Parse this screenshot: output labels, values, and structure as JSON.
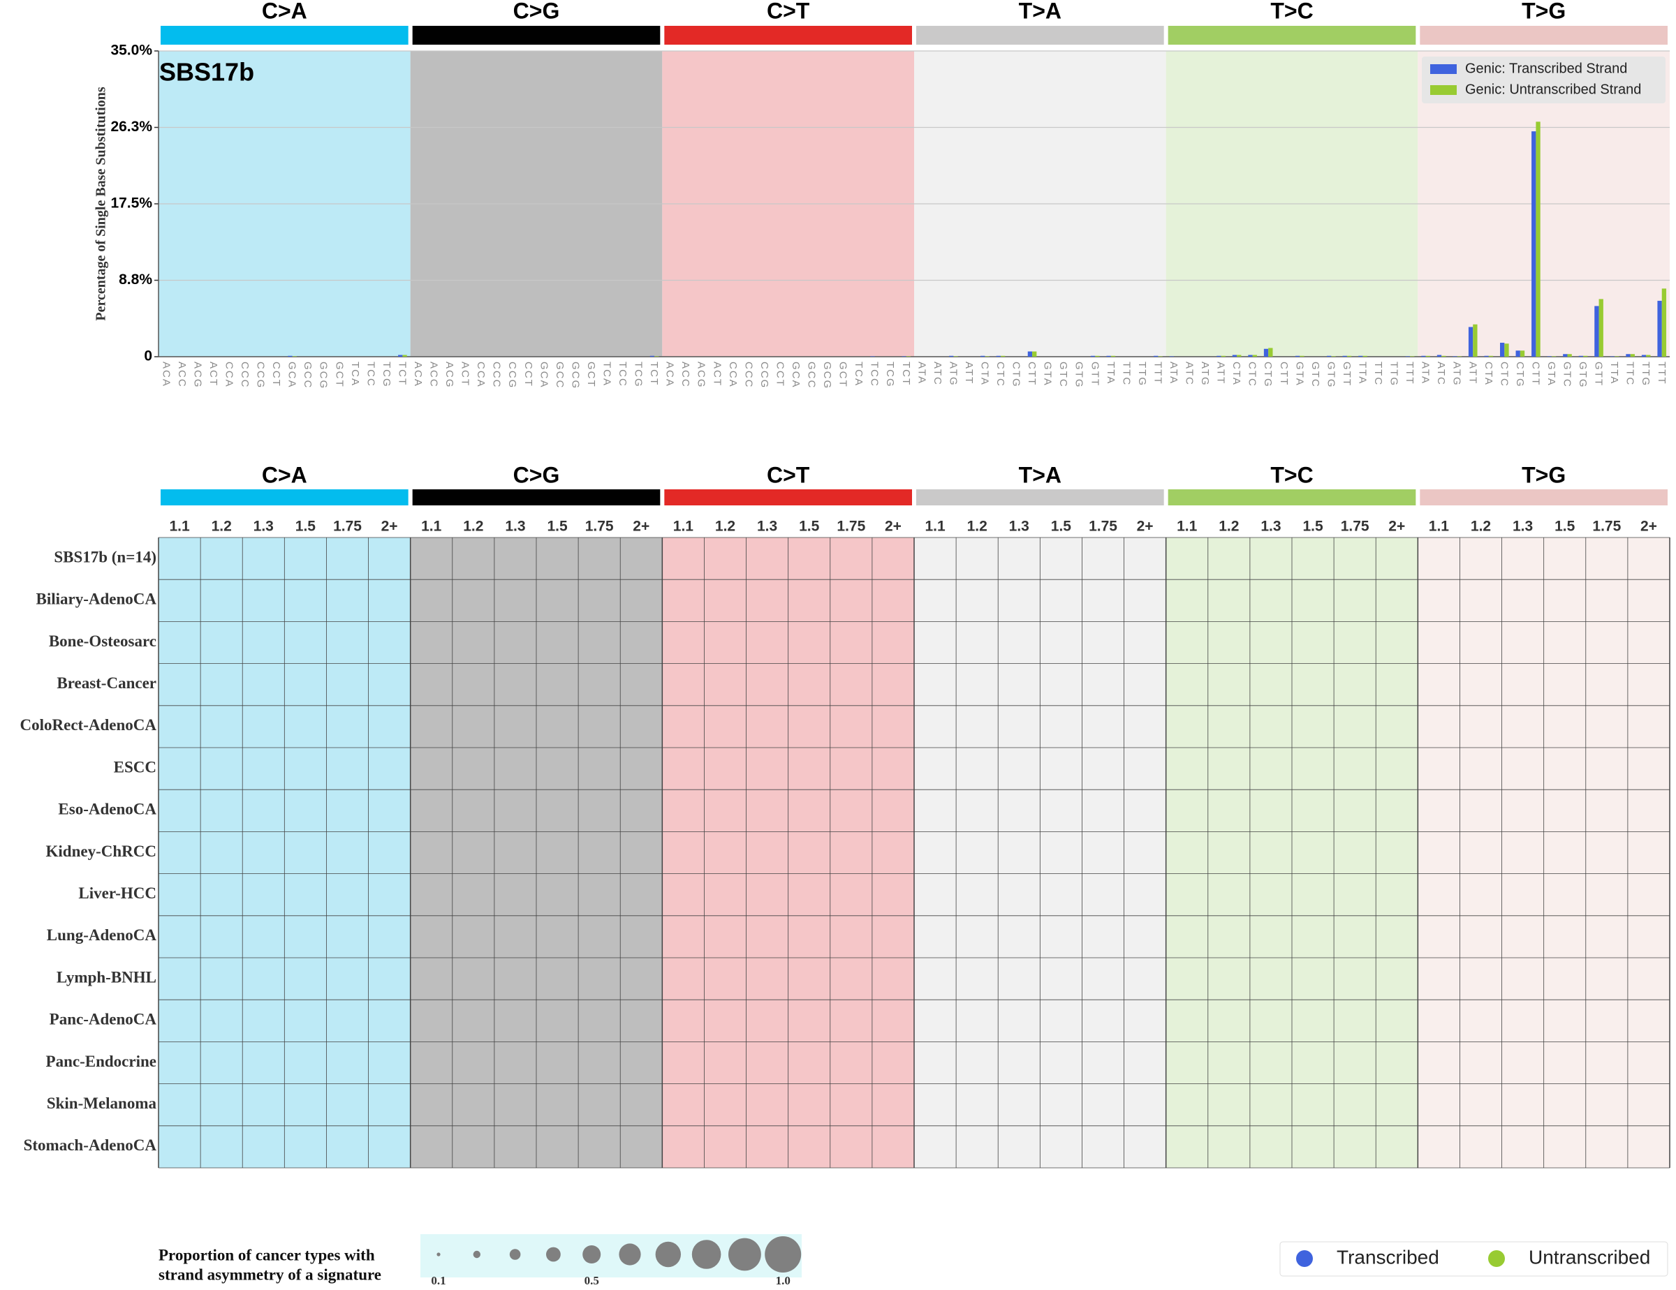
{
  "chart_data": [
    {
      "type": "bar",
      "title": "SBS17b",
      "y_label": "Percentage of Single Base Substitutions",
      "groups": [
        {
          "name": "C>A",
          "color": "#03bcee",
          "bg": "#bdeaf6"
        },
        {
          "name": "C>G",
          "color": "#010101",
          "bg": "#bebebe"
        },
        {
          "name": "C>T",
          "color": "#e32926",
          "bg": "#f5c6c8"
        },
        {
          "name": "T>A",
          "color": "#cac9c9",
          "bg": "#f1f1f1"
        },
        {
          "name": "T>C",
          "color": "#a1ce63",
          "bg": "#e5f2d9"
        },
        {
          "name": "T>G",
          "color": "#ebc6c4",
          "bg": "#f8ebea"
        }
      ],
      "categories": [
        "ACA",
        "ACC",
        "ACG",
        "ACT",
        "CCA",
        "CCC",
        "CCG",
        "CCT",
        "GCA",
        "GCC",
        "GCG",
        "GCT",
        "TCA",
        "TCC",
        "TCG",
        "TCT",
        "ACA",
        "ACC",
        "ACG",
        "ACT",
        "CCA",
        "CCC",
        "CCG",
        "CCT",
        "GCA",
        "GCC",
        "GCG",
        "GCT",
        "TCA",
        "TCC",
        "TCG",
        "TCT",
        "ACA",
        "ACC",
        "ACG",
        "ACT",
        "CCA",
        "CCC",
        "CCG",
        "CCT",
        "GCA",
        "GCC",
        "GCG",
        "GCT",
        "TCA",
        "TCC",
        "TCG",
        "TCT",
        "ATA",
        "ATC",
        "ATG",
        "ATT",
        "CTA",
        "CTC",
        "CTG",
        "CTT",
        "GTA",
        "GTC",
        "GTG",
        "GTT",
        "TTA",
        "TTC",
        "TTG",
        "TTT",
        "ATA",
        "ATC",
        "ATG",
        "ATT",
        "CTA",
        "CTC",
        "CTG",
        "CTT",
        "GTA",
        "GTC",
        "GTG",
        "GTT",
        "TTA",
        "TTC",
        "TTG",
        "TTT",
        "ATA",
        "ATC",
        "ATG",
        "ATT",
        "CTA",
        "CTC",
        "CTG",
        "CTT",
        "GTA",
        "GTC",
        "GTG",
        "GTT",
        "TTA",
        "TTC",
        "TTG",
        "TTT"
      ],
      "series": [
        {
          "name": "Genic: Transcribed Strand",
          "color": "#3f63de",
          "values": [
            0,
            0,
            0,
            0,
            0,
            0,
            0,
            0,
            0.1,
            0,
            0,
            0,
            0,
            0,
            0,
            0.2,
            0,
            0,
            0,
            0,
            0,
            0,
            0,
            0,
            0,
            0,
            0,
            0,
            0,
            0,
            0,
            0.1,
            0,
            0,
            0,
            0,
            0,
            0,
            0,
            0,
            0,
            0,
            0,
            0,
            0,
            0.05,
            0,
            0.05,
            0,
            0,
            0.1,
            0,
            0.1,
            0.1,
            0,
            0.6,
            0,
            0,
            0,
            0.1,
            0.1,
            0,
            0,
            0.1,
            0.05,
            0,
            0,
            0.1,
            0.2,
            0.2,
            0.9,
            0,
            0.1,
            0,
            0.1,
            0.1,
            0.1,
            0,
            0,
            0.05,
            0.1,
            0.2,
            0.05,
            3.4,
            0.1,
            1.6,
            0.7,
            25.8,
            0.05,
            0.3,
            0.1,
            5.8,
            0.05,
            0.3,
            0.2,
            6.4
          ]
        },
        {
          "name": "Genic: Untranscribed Strand",
          "color": "#98cb32",
          "values": [
            0,
            0,
            0,
            0,
            0,
            0,
            0,
            0,
            0.05,
            0,
            0,
            0,
            0,
            0,
            0,
            0.2,
            0,
            0,
            0,
            0,
            0,
            0,
            0,
            0,
            0,
            0,
            0,
            0,
            0,
            0,
            0,
            0.05,
            0,
            0,
            0,
            0,
            0,
            0,
            0,
            0,
            0,
            0,
            0,
            0,
            0,
            0,
            0,
            0.05,
            0,
            0,
            0.05,
            0,
            0.05,
            0.1,
            0,
            0.6,
            0,
            0,
            0,
            0.1,
            0.1,
            0,
            0,
            0.05,
            0,
            0,
            0,
            0.1,
            0.2,
            0.2,
            1.0,
            0,
            0.1,
            0,
            0.05,
            0.1,
            0.1,
            0,
            0,
            0.05,
            0.1,
            0.1,
            0.05,
            3.7,
            0.1,
            1.5,
            0.7,
            26.9,
            0.05,
            0.3,
            0.1,
            6.6,
            0.05,
            0.3,
            0.2,
            7.8
          ]
        }
      ],
      "ylim": [
        0,
        35
      ],
      "yticks": [
        0,
        {
          "value": 8.75,
          "label": "8.8%"
        },
        {
          "value": 17.5,
          "label": "17.5%"
        },
        {
          "value": 26.25,
          "label": "26.3%"
        },
        {
          "value": 35,
          "label": "35.0%"
        }
      ],
      "grid": true,
      "legend_position": "upper right"
    },
    {
      "type": "dot",
      "groups": [
        {
          "name": "C>A",
          "color": "#03bcee",
          "bg": "#bdeaf6"
        },
        {
          "name": "C>G",
          "color": "#010101",
          "bg": "#bebebe"
        },
        {
          "name": "C>T",
          "color": "#e32926",
          "bg": "#f5c6c8"
        },
        {
          "name": "T>A",
          "color": "#cac9c9",
          "bg": "#f1f1f1"
        },
        {
          "name": "T>C",
          "color": "#a1ce63",
          "bg": "#e5f2d9"
        },
        {
          "name": "T>G",
          "color": "#ebc6c4",
          "bg": "#f9efed"
        }
      ],
      "columns": [
        "1.1",
        "1.2",
        "1.3",
        "1.5",
        "1.75",
        "2+"
      ],
      "rows": [
        "SBS17b (n=14)",
        "Biliary-AdenoCA",
        "Bone-Osteosarc",
        "Breast-Cancer",
        "ColoRect-AdenoCA",
        "ESCC",
        "Eso-AdenoCA",
        "Kidney-ChRCC",
        "Liver-HCC",
        "Lung-AdenoCA",
        "Lymph-BNHL",
        "Panc-AdenoCA",
        "Panc-Endocrine",
        "Skin-Melanoma",
        "Stomach-AdenoCA"
      ],
      "size_legend": {
        "title": [
          "Proportion of cancer types with",
          "strand asymmetry of a signature"
        ],
        "values": [
          0.1,
          0.2,
          0.3,
          0.4,
          0.5,
          0.6,
          0.7,
          0.8,
          0.9,
          1.0
        ],
        "ticks": [
          0.1,
          0.5,
          {
            "value": 1,
            "label": "1.0"
          }
        ],
        "color": "#808080",
        "bg": "#dff8f9"
      },
      "legend": [
        {
          "name": "Transcribed",
          "color": "#3f63de"
        },
        {
          "name": "Untranscribed",
          "color": "#98cb32"
        }
      ]
    }
  ]
}
